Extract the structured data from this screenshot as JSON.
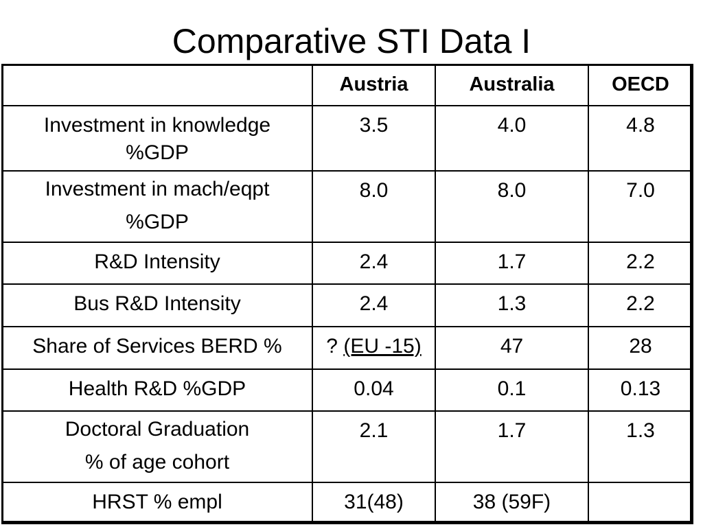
{
  "title": "Comparative STI Data I",
  "table": {
    "columns": [
      "",
      "Austria",
      "Australia",
      "OECD"
    ],
    "rows": [
      {
        "label_lines": [
          "Investment in knowledge",
          "%GDP"
        ],
        "values": [
          "3.5",
          "4.0",
          "4.8"
        ]
      },
      {
        "label_lines": [
          "Investment in mach/eqpt",
          "%GDP"
        ],
        "values": [
          "8.0",
          "8.0",
          "7.0"
        ]
      },
      {
        "label_lines": [
          "R&D Intensity"
        ],
        "values": [
          "2.4",
          "1.7",
          "2.2"
        ]
      },
      {
        "label_lines": [
          "Bus R&D Intensity"
        ],
        "values": [
          "2.4",
          "1.3",
          "2.2"
        ]
      },
      {
        "label_lines": [
          "Share of Services BERD %"
        ],
        "values": [
          "?",
          "47",
          "28"
        ],
        "austria_note": "(EU -15)"
      },
      {
        "label_lines": [
          "Health R&D %GDP"
        ],
        "values": [
          "0.04",
          "0.1",
          "0.13"
        ]
      },
      {
        "label_lines": [
          "Doctoral Graduation",
          "% of age cohort"
        ],
        "values": [
          "2.1",
          "1.7",
          "1.3"
        ]
      },
      {
        "label_lines": [
          "HRST % empl"
        ],
        "values": [
          "31(48)",
          "38 (59F)",
          ""
        ]
      }
    ]
  }
}
